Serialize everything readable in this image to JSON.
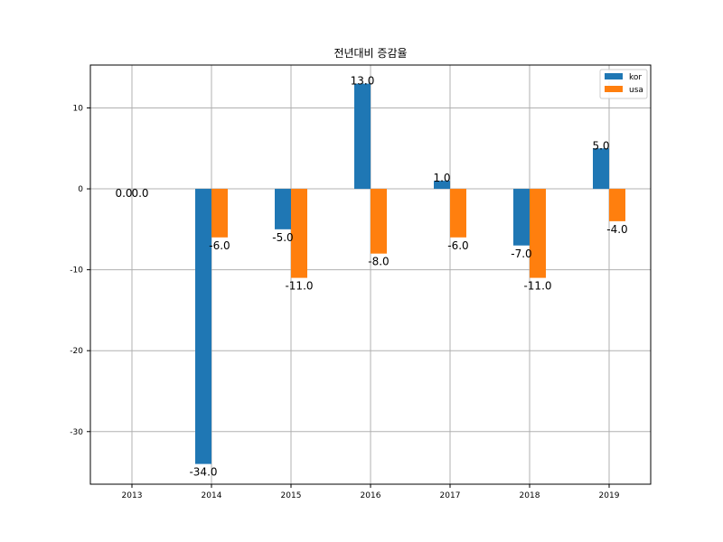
{
  "chart_data": {
    "type": "bar",
    "title": "전년대비 증감율",
    "xlabel": "",
    "ylabel": "",
    "categories": [
      "2013",
      "2014",
      "2015",
      "2016",
      "2017",
      "2018",
      "2019"
    ],
    "series": [
      {
        "name": "kor",
        "color": "#1f77b4",
        "values": [
          0.0,
          -34.0,
          -5.0,
          13.0,
          1.0,
          -7.0,
          5.0
        ]
      },
      {
        "name": "usa",
        "color": "#ff7f0e",
        "values": [
          0.0,
          -6.0,
          -11.0,
          -8.0,
          -6.0,
          -11.0,
          -4.0
        ]
      }
    ],
    "ylim": [
      -36.5,
      15.3
    ],
    "yticks": [
      10,
      0,
      -10,
      -20,
      -30
    ],
    "ytick_labels": [
      "10",
      "0",
      "-10",
      "-20",
      "-30"
    ],
    "data_labels": {
      "kor": [
        "0.0",
        "-34.0",
        "-5.0",
        "13.0",
        "1.0",
        "-7.0",
        "5.0"
      ],
      "usa": [
        "0.0",
        "-6.0",
        "-11.0",
        "-8.0",
        "-6.0",
        "-11.0",
        "-4.0"
      ]
    },
    "grid": true,
    "legend": "top-right"
  }
}
